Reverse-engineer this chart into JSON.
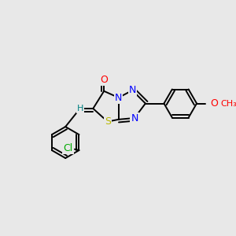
{
  "background_color": "#e8e8e8",
  "bond_color": "#000000",
  "atom_colors": {
    "O": "#ff0000",
    "N": "#0000ff",
    "S": "#b8b800",
    "Cl": "#00aa00",
    "H": "#008080",
    "C": "#000000"
  },
  "font_size": 8.5
}
